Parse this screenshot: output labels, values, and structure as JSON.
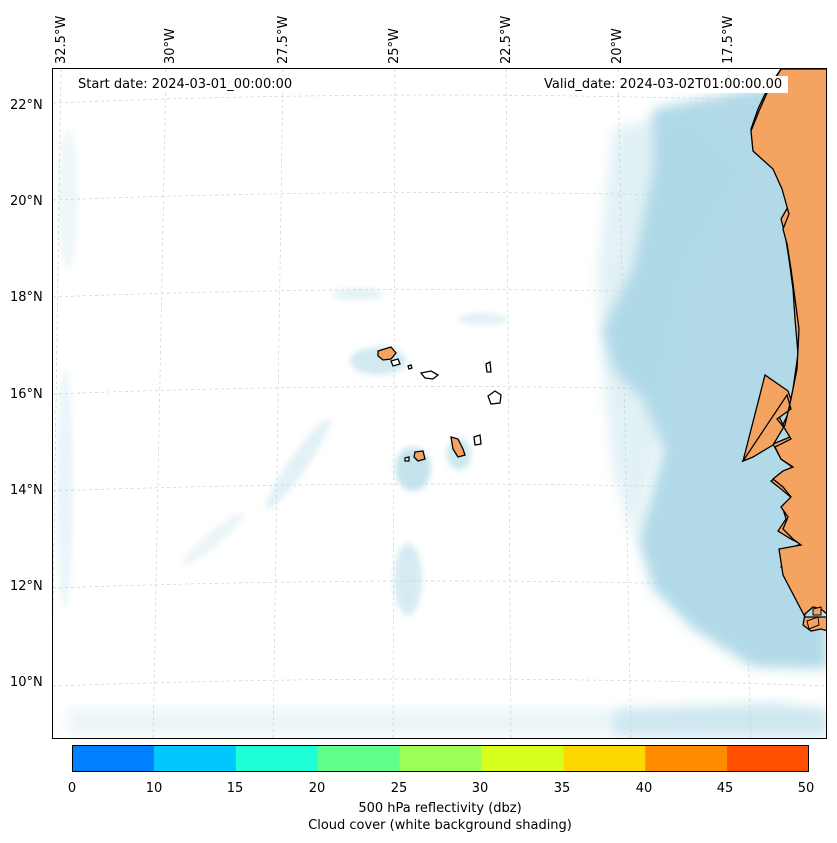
{
  "map": {
    "start_date": "Start date: 2024-03-01_00:00:00",
    "valid_date": "Valid_date: 2024-03-02T01:00:00.00",
    "longitude_labels": [
      "32.5°W",
      "30°W",
      "27.5°W",
      "25°W",
      "22.5°W",
      "20°W",
      "17.5°W"
    ],
    "latitude_labels": [
      "22°N",
      "20°N",
      "18°N",
      "16°N",
      "14°N",
      "12°N",
      "10°N"
    ],
    "land_color": "#f4a460",
    "cloud_color": "#add8e6"
  },
  "colorbar": {
    "ticks": [
      "0",
      "10",
      "15",
      "20",
      "25",
      "30",
      "35",
      "40",
      "45",
      "50"
    ],
    "colors": [
      "#0080ff",
      "#00c8ff",
      "#1effd8",
      "#60ff8a",
      "#9cff56",
      "#d7ff1e",
      "#ffd700",
      "#ff8c00",
      "#ff4f00"
    ],
    "label_line1": "500 hPa reflectivity (dbz)",
    "label_line2": "Cloud cover (white background shading)"
  }
}
